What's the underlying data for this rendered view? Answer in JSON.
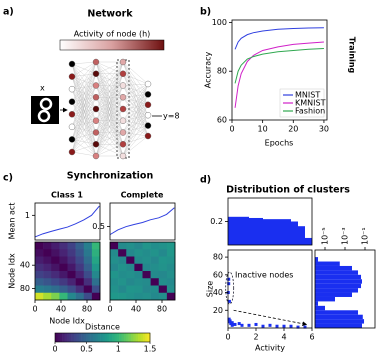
{
  "panel_labels": [
    "a)",
    "b)",
    "c)",
    "d)"
  ],
  "network": {
    "title": "Network",
    "colorbar_label": "Activity of node (h)",
    "input_label": "x",
    "output_label": "y=8"
  },
  "synchronization": {
    "title": "Synchronization"
  },
  "clusters": {
    "title": "Distribution of clusters"
  },
  "chart_data": [
    {
      "type": "line",
      "xlabel": "Epochs",
      "ylabel": "Accuracy",
      "side_label": "Training",
      "x": [
        1,
        2,
        3,
        5,
        7,
        10,
        15,
        20,
        25,
        30
      ],
      "series": [
        {
          "name": "MNIST",
          "color": "#3040e0",
          "values": [
            89,
            92,
            93.5,
            95,
            95.8,
            96.5,
            97.2,
            97.5,
            97.7,
            97.8
          ]
        },
        {
          "name": "KMNIST",
          "color": "#d020c8",
          "values": [
            65,
            74,
            79,
            84,
            86.5,
            88.5,
            90,
            91,
            91.5,
            92
          ]
        },
        {
          "name": "Fashion",
          "color": "#30a850",
          "values": [
            75,
            80,
            82.5,
            85,
            86,
            87,
            88,
            88.5,
            89,
            89.3
          ]
        }
      ],
      "xlim": [
        0,
        31
      ],
      "xticks": [
        0,
        10,
        20,
        30
      ],
      "ylim": [
        60,
        101
      ],
      "yticks": [
        60,
        80,
        100
      ],
      "legend": "lower right"
    },
    {
      "type": "line",
      "title": "Class 1",
      "ylabel": "Mean act",
      "color": "#3040e0",
      "x": [
        0,
        12,
        25,
        37,
        50,
        62,
        75,
        87,
        99
      ],
      "values": [
        0.3,
        0.4,
        0.48,
        0.55,
        0.62,
        0.72,
        0.85,
        1.0,
        1.3
      ],
      "xlim": [
        0,
        100
      ],
      "ylim": [
        0.2,
        1.4
      ],
      "yticks": [
        1
      ]
    },
    {
      "type": "line",
      "title": "Complete",
      "color": "#3040e0",
      "x": [
        0,
        12,
        25,
        37,
        50,
        62,
        75,
        87,
        99
      ],
      "values": [
        0.38,
        0.45,
        0.5,
        0.53,
        0.56,
        0.6,
        0.63,
        0.68,
        0.78
      ],
      "xlim": [
        0,
        100
      ],
      "ylim": [
        0.3,
        0.85
      ],
      "yticks": [
        0.5
      ]
    },
    {
      "type": "heatmap",
      "xlabel": "Node Idx",
      "ylabel": "Node Idx",
      "colormap": "viridis",
      "clim": [
        0,
        1.5
      ],
      "xlim": [
        0,
        100
      ],
      "xticks": [
        0,
        40,
        80
      ],
      "ylim": [
        100,
        0
      ],
      "yticks": [
        40,
        80
      ],
      "matrix": [
        [
          0,
          0.05,
          0.12,
          0.2,
          0.3,
          0.45,
          0.65,
          1.0
        ],
        [
          0.05,
          0,
          0.07,
          0.15,
          0.25,
          0.4,
          0.6,
          0.95
        ],
        [
          0.12,
          0.07,
          0,
          0.08,
          0.18,
          0.33,
          0.53,
          0.88
        ],
        [
          0.2,
          0.15,
          0.08,
          0,
          0.1,
          0.25,
          0.45,
          0.8
        ],
        [
          0.3,
          0.25,
          0.18,
          0.1,
          0,
          0.15,
          0.35,
          0.7
        ],
        [
          0.45,
          0.4,
          0.33,
          0.25,
          0.15,
          0,
          0.2,
          0.55
        ],
        [
          0.65,
          0.6,
          0.53,
          0.45,
          0.35,
          0.2,
          0,
          0.35
        ],
        [
          1.4,
          1.3,
          1.2,
          1.0,
          0.7,
          0.55,
          0.35,
          0
        ]
      ],
      "colorbar": {
        "label": "Distance",
        "lim": [
          0,
          1.5
        ],
        "ticks": [
          0,
          0.5,
          1,
          1.5
        ]
      }
    },
    {
      "type": "heatmap",
      "colormap": "viridis",
      "clim": [
        0,
        1.5
      ],
      "xlim": [
        0,
        100
      ],
      "xticks": [
        0,
        40,
        80
      ],
      "ylim": [
        100,
        0
      ],
      "matrix": [
        [
          0,
          0.72,
          0.75,
          0.7,
          0.78,
          0.74,
          0.76,
          0.8
        ],
        [
          0.72,
          0,
          0.7,
          0.76,
          0.73,
          0.77,
          0.71,
          0.79
        ],
        [
          0.75,
          0.7,
          0,
          0.72,
          0.75,
          0.7,
          0.78,
          0.76
        ],
        [
          0.7,
          0.76,
          0.72,
          0,
          0.71,
          0.74,
          0.77,
          0.73
        ],
        [
          0.78,
          0.73,
          0.75,
          0.71,
          0,
          0.72,
          0.7,
          0.75
        ],
        [
          0.74,
          0.77,
          0.7,
          0.74,
          0.72,
          0,
          0.73,
          0.71
        ],
        [
          0.76,
          0.71,
          0.78,
          0.77,
          0.7,
          0.73,
          0,
          0.74
        ],
        [
          0.8,
          0.79,
          0.76,
          0.73,
          0.75,
          0.71,
          0.74,
          0
        ]
      ]
    },
    {
      "type": "histogram",
      "color": "#1a2ff0",
      "bins": [
        0,
        0.5,
        1,
        1.5,
        2,
        2.5,
        3,
        3.5,
        4,
        4.5,
        5,
        5.5,
        6
      ],
      "values": [
        0.22,
        0.22,
        0.22,
        0.215,
        0.215,
        0.21,
        0.21,
        0.21,
        0.21,
        0.2,
        0.18,
        0.13
      ],
      "xlim": [
        0,
        6
      ],
      "ylim": [
        0.1,
        0.3
      ],
      "yticks": [
        0.2
      ]
    },
    {
      "type": "scatter",
      "xlabel": "Activity",
      "ylabel": "Size",
      "color": "#1a2ff0",
      "annotation": "Inactive nodes",
      "x": [
        0.02,
        0.05,
        0.1,
        0.15,
        0.2,
        0.3,
        0.5,
        0.8,
        1.0,
        1.5,
        2,
        2.5,
        3,
        3.5,
        4,
        4.5,
        5,
        5.5,
        0.05,
        0.08,
        0.1,
        0.3
      ],
      "y": [
        40,
        50,
        30,
        8,
        5,
        6,
        4,
        5,
        3,
        3,
        4,
        2,
        3,
        2,
        2,
        2,
        1,
        1,
        55,
        10,
        7,
        3
      ],
      "xlim": [
        0,
        6
      ],
      "xticks": [
        0,
        2,
        4,
        6
      ],
      "ylim": [
        0,
        88
      ],
      "yticks": [
        20,
        40,
        60,
        80
      ]
    },
    {
      "type": "histogram",
      "orientation": "horizontal",
      "color": "#1a2ff0",
      "xscale": "log",
      "bins": [
        0,
        5,
        10,
        15,
        20,
        25,
        30,
        35,
        40,
        45,
        50,
        55,
        60,
        65,
        70,
        75,
        80
      ],
      "values": [
        0.05,
        0.08,
        0.06,
        0.02,
        1e-05,
        2e-06,
        0.0001,
        0.005,
        0.02,
        0.04,
        0.05,
        0.04,
        0.02,
        0.005,
        0.0003,
        2e-06
      ],
      "xlim": [
        1e-06,
        1
      ],
      "ylim": [
        0,
        88
      ],
      "xticks": [
        {
          "value": 1e-05,
          "label": "10⁻⁵"
        },
        {
          "value": 0.001,
          "label": "10⁻³"
        },
        {
          "value": 0.1,
          "label": "10⁻¹"
        }
      ]
    }
  ]
}
